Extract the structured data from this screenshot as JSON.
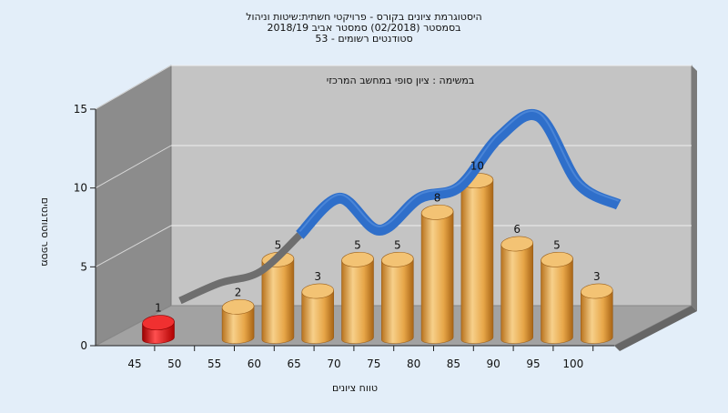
{
  "chart_data": {
    "type": "bar",
    "title_lines": [
      "היסטוגרמת ציונים בקורס - פרויקטי חשתית:שיטות וניהול",
      "בסמסטר  (02/2018)  סמסטר אביב 2018/19",
      "סטודנטים רשומים - 53"
    ],
    "subtitle": "במשימה : ציון סופי במחשב המרכזי",
    "xlabel": "טווח ציונים",
    "ylabel": "מספר סטודנטים",
    "categories": [
      "45",
      "50",
      "55",
      "60",
      "65",
      "70",
      "75",
      "80",
      "85",
      "90",
      "95",
      "100"
    ],
    "values": [
      1,
      0,
      2,
      5,
      3,
      5,
      5,
      8,
      10,
      6,
      5,
      3
    ],
    "data_labels": [
      "1",
      "",
      "2",
      "5",
      "3",
      "5",
      "5",
      "8",
      "10",
      "6",
      "5",
      "3"
    ],
    "bar_colors": [
      "#e01010",
      "",
      "#e8a94a",
      "#e8a94a",
      "#e8a94a",
      "#e8a94a",
      "#e8a94a",
      "#e8a94a",
      "#e8a94a",
      "#e8a94a",
      "#e8a94a",
      "#e8a94a"
    ],
    "ylim": [
      0,
      15
    ],
    "yticks": [
      "0",
      "5",
      "10",
      "15"
    ],
    "grid": true,
    "curve": {
      "x": [
        47.5,
        52.5,
        57.5,
        62.5,
        67.5,
        72.5,
        77.5,
        82.5,
        87.5,
        92.5,
        97.5,
        102.5
      ],
      "y": [
        0.2,
        1.3,
        2.0,
        4.3,
        6.6,
        4.6,
        6.6,
        7.3,
        10.4,
        11.7,
        7.5,
        6.2
      ],
      "colors": {
        "low": "#6e6e6e",
        "high": "#2f6fca"
      }
    },
    "colors": {
      "wall_back": "#c4c4c4",
      "wall_left": "#8c8c8c",
      "floor": "#a2a2a2",
      "axis": "#222222"
    }
  }
}
